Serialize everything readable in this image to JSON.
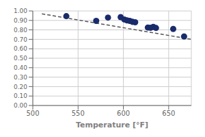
{
  "chart_data": {
    "type": "scatter",
    "xlabel": "Temperature [°F]",
    "series": [
      {
        "type": "scatter",
        "color": "#1a2b6b",
        "marker": "circle",
        "x": [
          537,
          570,
          583,
          597,
          601,
          604,
          607,
          610,
          613,
          627,
          630,
          633,
          636,
          655,
          667
        ],
        "values": [
          0.945,
          0.895,
          0.93,
          0.935,
          0.91,
          0.9,
          0.895,
          0.885,
          0.88,
          0.825,
          0.822,
          0.832,
          0.82,
          0.81,
          0.73
        ]
      },
      {
        "type": "line",
        "color": "#555555",
        "line_style": "dashed",
        "x": [
          510,
          675
        ],
        "values": [
          0.97,
          0.7
        ]
      }
    ],
    "xlim": [
      500,
      675
    ],
    "ylim": [
      0.0,
      1.0
    ],
    "xticks": [
      500,
      550,
      600,
      650
    ],
    "yticks": [
      {
        "value": 0.0,
        "label": "0.00"
      },
      {
        "value": 0.1,
        "label": "0.10"
      },
      {
        "value": 0.2,
        "label": "0.20"
      },
      {
        "value": 0.3,
        "label": "0.30"
      },
      {
        "value": 0.4,
        "label": "0.40"
      },
      {
        "value": 0.5,
        "label": "0.50"
      },
      {
        "value": 0.6,
        "label": "0.60"
      },
      {
        "value": 0.7,
        "label": "0.70"
      },
      {
        "value": 0.8,
        "label": "0.80"
      },
      {
        "value": 0.9,
        "label": "0.90"
      },
      {
        "value": 1.0,
        "label": "1.00"
      }
    ],
    "grid": true
  }
}
